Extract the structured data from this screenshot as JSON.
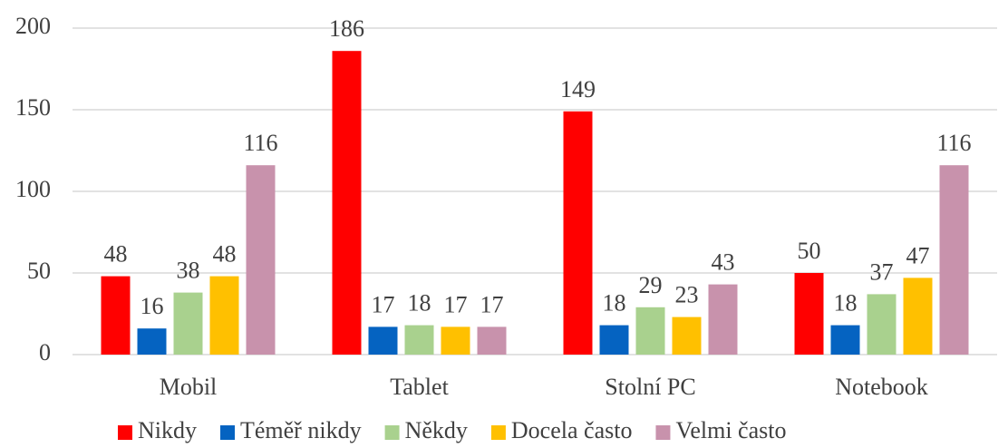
{
  "chart_data": {
    "type": "bar",
    "categories": [
      "Mobil",
      "Tablet",
      "Stolní PC",
      "Notebook"
    ],
    "series": [
      {
        "name": "Nikdy",
        "color": "#ff0000",
        "values": [
          48,
          186,
          149,
          50
        ]
      },
      {
        "name": "Téměř nikdy",
        "color": "#0563c1",
        "values": [
          16,
          17,
          18,
          18
        ]
      },
      {
        "name": "Někdy",
        "color": "#a9d18e",
        "values": [
          38,
          18,
          29,
          37
        ]
      },
      {
        "name": "Docela často",
        "color": "#ffc000",
        "values": [
          48,
          17,
          23,
          47
        ]
      },
      {
        "name": "Velmi často",
        "color": "#c892ac",
        "values": [
          116,
          17,
          43,
          116
        ]
      }
    ],
    "ylim": [
      0,
      200
    ],
    "yticks": [
      0,
      50,
      100,
      150,
      200
    ],
    "grid": true,
    "legend": "bottom"
  }
}
